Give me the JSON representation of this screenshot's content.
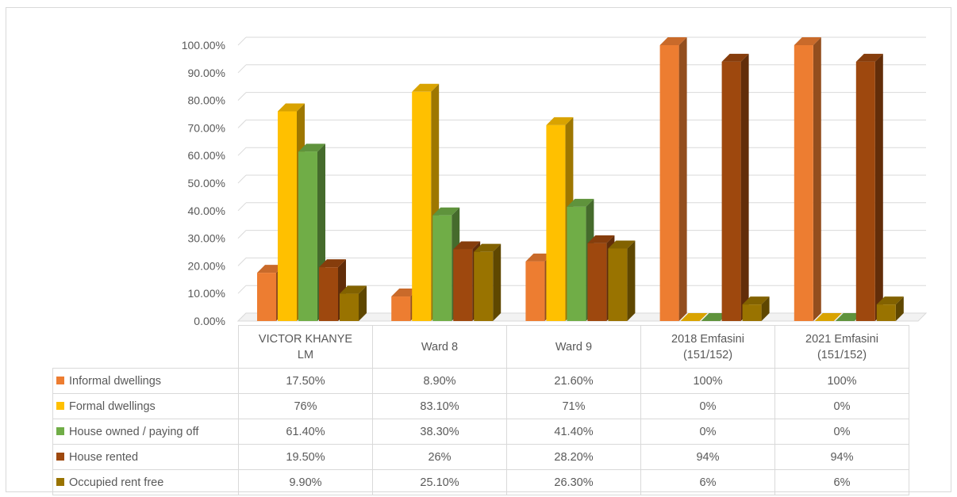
{
  "chart_data": {
    "type": "bar",
    "three_d": true,
    "categories": [
      "VICTOR KHANYE LM",
      "Ward 8",
      "Ward 9",
      "2018 Emfasini (151/152)",
      "2021 Emfasini (151/152)"
    ],
    "ylim": [
      0,
      100
    ],
    "y_ticks": [
      "0.00%",
      "10.00%",
      "20.00%",
      "30.00%",
      "40.00%",
      "50.00%",
      "60.00%",
      "70.00%",
      "80.00%",
      "90.00%",
      "100.00%"
    ],
    "legend_position": "data-table",
    "series": [
      {
        "name": "Informal dwellings",
        "color": "#ED7D31",
        "values": [
          17.5,
          8.9,
          21.6,
          100,
          100
        ],
        "labels": [
          "17.50%",
          "8.90%",
          "21.60%",
          "100%",
          "100%"
        ]
      },
      {
        "name": "Formal dwellings",
        "color": "#FFC000",
        "values": [
          76,
          83.1,
          71,
          0,
          0
        ],
        "labels": [
          "76%",
          "83.10%",
          "71%",
          "0%",
          "0%"
        ]
      },
      {
        "name": "House owned / paying off",
        "color": "#70AD47",
        "values": [
          61.4,
          38.3,
          41.4,
          0,
          0
        ],
        "labels": [
          "61.40%",
          "38.30%",
          "41.40%",
          "0%",
          "0%"
        ]
      },
      {
        "name": "House rented",
        "color": "#9E480E",
        "values": [
          19.5,
          26,
          28.2,
          94,
          94
        ],
        "labels": [
          "19.50%",
          "26%",
          "28.20%",
          "94%",
          "94%"
        ]
      },
      {
        "name": "Occupied rent free",
        "color": "#997300",
        "values": [
          9.9,
          25.1,
          26.3,
          6,
          6
        ],
        "labels": [
          "9.90%",
          "25.10%",
          "26.30%",
          "6%",
          "6%"
        ]
      }
    ]
  }
}
